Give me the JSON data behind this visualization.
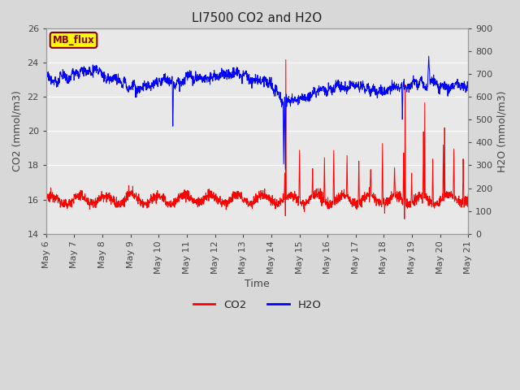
{
  "title": "LI7500 CO2 and H2O",
  "xlabel": "Time",
  "ylabel_left": "CO2 (mmol/m3)",
  "ylabel_right": "H2O (mmol/m3)",
  "ylim_left": [
    14,
    26
  ],
  "ylim_right": [
    0,
    900
  ],
  "yticks_left": [
    14,
    16,
    18,
    20,
    22,
    24,
    26
  ],
  "yticks_right": [
    0,
    100,
    200,
    300,
    400,
    500,
    600,
    700,
    800,
    900
  ],
  "co2_color": "#ff0000",
  "h2o_color": "#0000ff",
  "background_color": "#d8d8d8",
  "plot_bg_color": "#e8e8e8",
  "annotation_text": "MB_flux",
  "annotation_bg": "#ffff00",
  "annotation_border": "#8b0000",
  "xtick_labels": [
    "May 6",
    "May 7",
    "May 8",
    "May 9",
    "May 10",
    "May 11",
    "May 12",
    "May 13",
    "May 14",
    "May 15",
    "May 16",
    "May 17",
    "May 18",
    "May 19",
    "May 20",
    "May 21"
  ],
  "title_fontsize": 11,
  "label_fontsize": 9,
  "tick_fontsize": 8
}
